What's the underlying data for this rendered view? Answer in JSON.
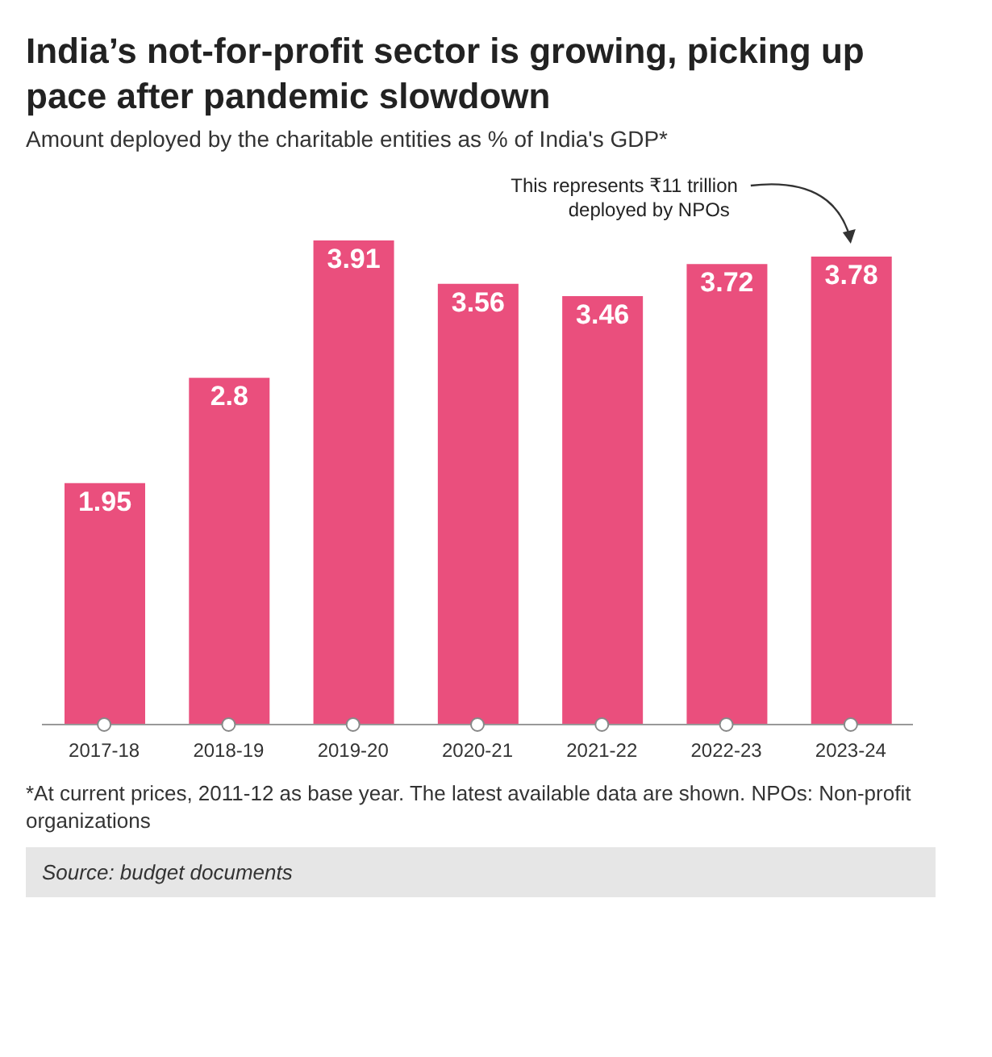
{
  "chart_data": {
    "type": "bar",
    "title": "India’s not-for-profit sector is growing, picking up pace after pandemic slowdown",
    "subtitle": "Amount deployed by the charitable entities as % of India's GDP*",
    "categories": [
      "2017-18",
      "2018-19",
      "2019-20",
      "2020-21",
      "2021-22",
      "2022-23",
      "2023-24"
    ],
    "values": [
      1.95,
      2.8,
      3.91,
      3.56,
      3.46,
      3.72,
      3.78
    ],
    "color": "#ea4f7d",
    "data_labels": true,
    "annotations": [
      "This represents ₹11 trillion deployed by NPOs",
      "*At current prices, 2011-12 as base year. The latest available data are shown. NPOs: Non-profit organizations",
      "Source: budget documents"
    ]
  }
}
